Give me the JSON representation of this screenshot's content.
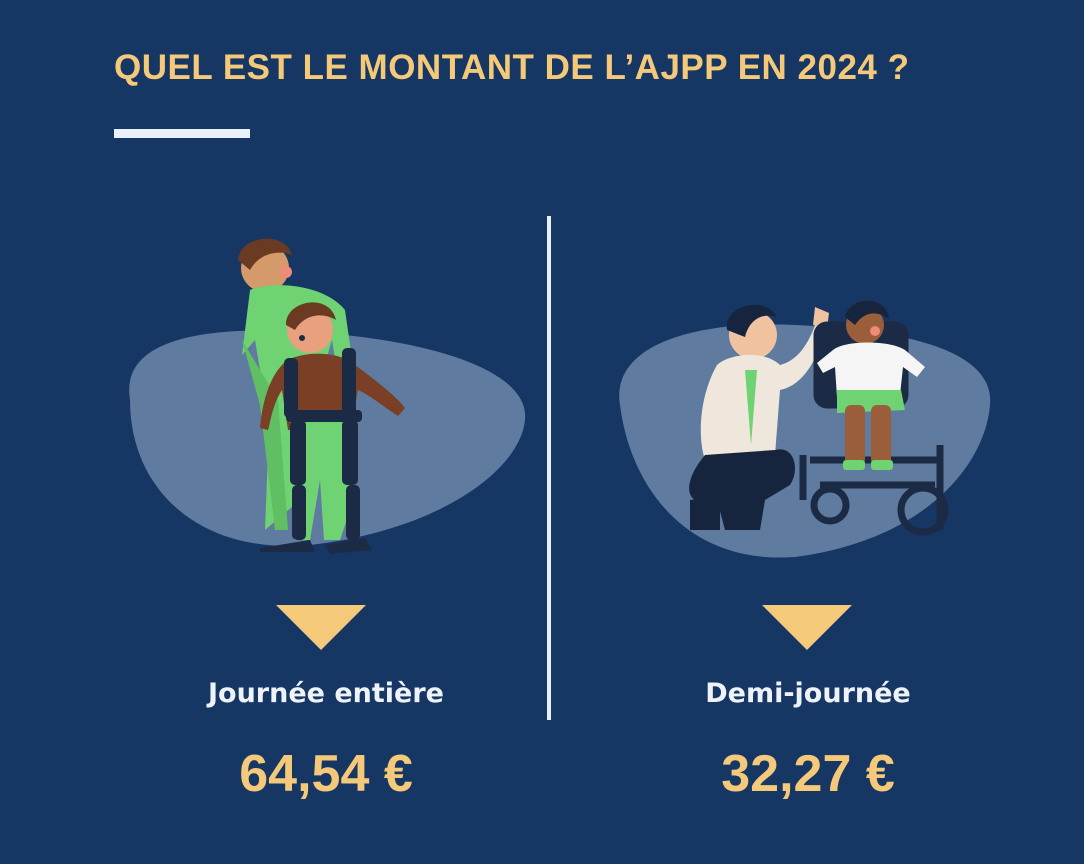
{
  "title": "QUEL EST LE MONTANT DE L’AJPP EN 2024 ?",
  "colors": {
    "background": "#163664",
    "accent": "#f4c97a",
    "text_light": "#eef3fa",
    "blob": "#5f7ba0"
  },
  "options": [
    {
      "label": "Journée entière",
      "amount": "64,54 €",
      "illustration": "caregiver-helping-child-with-exoskeleton"
    },
    {
      "label": "Demi-journée",
      "amount": "32,27 €",
      "illustration": "man-high-fiving-child-in-wheelchair"
    }
  ]
}
